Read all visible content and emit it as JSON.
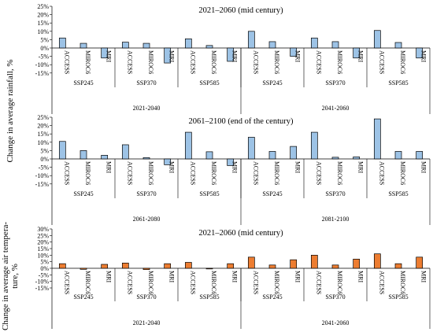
{
  "y_axis_labels": {
    "rain": "Change in average rainfall, %",
    "temp_line1": "Change in average air tempera-",
    "temp_line2": "ture, %"
  },
  "chart_data": [
    {
      "type": "bar",
      "title": "2021–2060 (mid century)",
      "ylabel": "Change in average rainfall, %",
      "ylim": [
        -15,
        25
      ],
      "yticks": [
        "25%",
        "20%",
        "15%",
        "10%",
        "5%",
        "0%",
        "-5%",
        "-10%",
        "-15%"
      ],
      "color": "#9dc3e6",
      "categories": [
        "ACCESS",
        "MIROC6",
        "MRI",
        "ACCESS",
        "MIROC6",
        "MRI",
        "ACCESS",
        "MIROC6",
        "MRI",
        "ACCESS",
        "MIROC6",
        "MRI",
        "ACCESS",
        "MIROC6",
        "MRI",
        "ACCESS",
        "MIROC6",
        "MRI"
      ],
      "scenarios": [
        "SSP245",
        "SSP370",
        "SSP585",
        "SSP245",
        "SSP370",
        "SSP585"
      ],
      "periods": [
        "2021-2040",
        "2041-2060"
      ],
      "values": [
        6,
        2.8,
        -6,
        3.5,
        2.8,
        -9,
        5.5,
        1.5,
        -8,
        10,
        3.8,
        -5,
        6,
        3.8,
        -6,
        10.5,
        3.3,
        -6
      ]
    },
    {
      "type": "bar",
      "title": "2061–2100 (end of the century)",
      "ylabel": "Change in average rainfall, %",
      "ylim": [
        -15,
        25
      ],
      "yticks": [
        "25%",
        "20%",
        "15%",
        "10%",
        "5%",
        "0%",
        "-5%",
        "-10%",
        "-15%"
      ],
      "color": "#9dc3e6",
      "categories": [
        "ACCESS",
        "MIROC6",
        "MRI",
        "ACCESS",
        "MIROC6",
        "MRI",
        "ACCESS",
        "MIROC6",
        "MRI",
        "ACCESS",
        "MIROC6",
        "MRI",
        "ACCESS",
        "MIROC6",
        "MRI",
        "ACCESS",
        "MIROC6",
        "MRI"
      ],
      "scenarios": [
        "SSP245",
        "SSP370",
        "SSP585",
        "SSP245",
        "SSP370",
        "SSP585"
      ],
      "periods": [
        "2061-2080",
        "2081-2100"
      ],
      "values": [
        10.5,
        5,
        2.2,
        8.5,
        0.8,
        -3.5,
        16,
        4.3,
        -4,
        13,
        4.5,
        7.5,
        16,
        1,
        1.2,
        24,
        4.5,
        4.5
      ]
    },
    {
      "type": "bar",
      "title": "2021–2060 (mid century)",
      "ylabel": "Change in average air tempera- ture, %",
      "ylim": [
        -15,
        30
      ],
      "yticks": [
        "30%",
        "25%",
        "20%",
        "15%",
        "10%",
        "5%",
        "0%",
        "-5%",
        "-10%",
        "-15%"
      ],
      "color": "#ed7d31",
      "categories": [
        "ACCESS",
        "MIROC6",
        "MRI",
        "ACCESS",
        "MIROC6",
        "MRI",
        "ACCESS",
        "MIROC6",
        "MRI",
        "ACCESS",
        "MIROC6",
        "MRI",
        "ACCESS",
        "MIROC6",
        "MRI",
        "ACCESS",
        "MIROC6",
        "MRI"
      ],
      "scenarios": [
        "SSP245",
        "SSP370",
        "SSP585",
        "SSP245",
        "SSP370",
        "SSP585"
      ],
      "periods": [
        "2021-2040",
        "2041-2060"
      ],
      "values": [
        3.5,
        -0.8,
        3,
        4,
        -1,
        3.5,
        4.5,
        -0.5,
        3.5,
        8.5,
        2.5,
        6.5,
        10,
        2.5,
        7,
        11,
        3.5,
        8.5
      ]
    }
  ]
}
